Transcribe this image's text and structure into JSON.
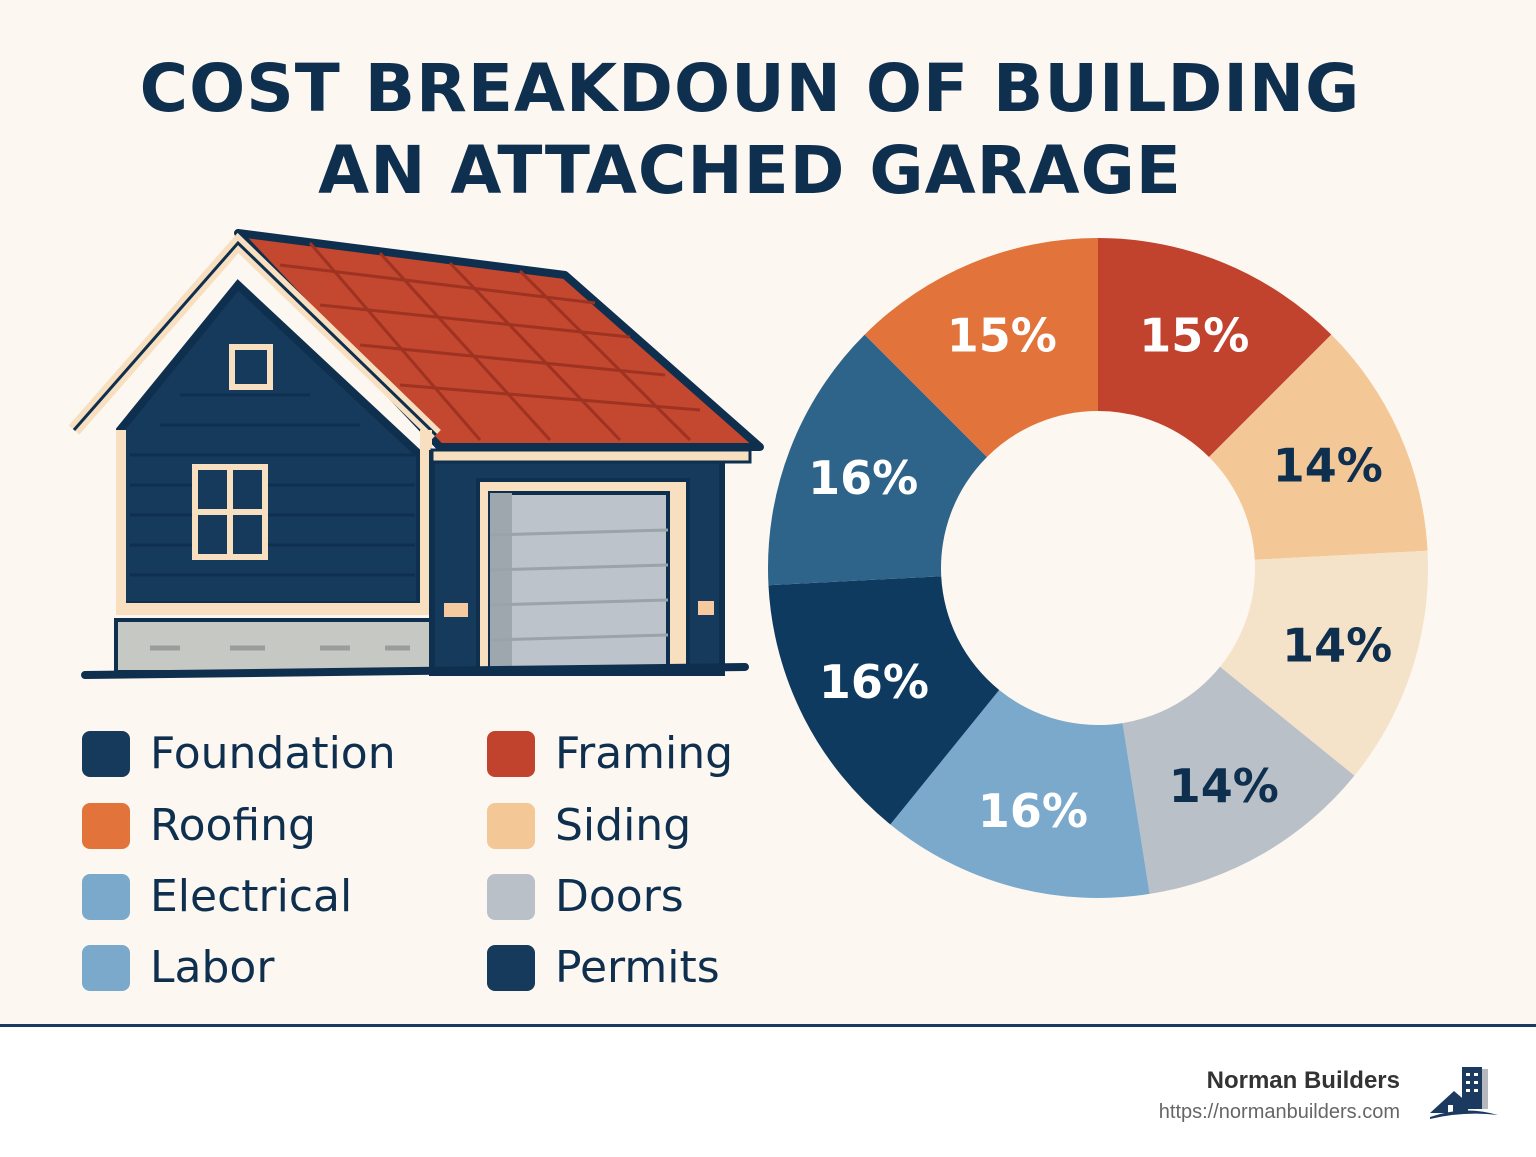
{
  "title_lines": [
    "COST BREAKDOUN OF BUILDING",
    "AN ATTACHED GARAGE"
  ],
  "chart_data": {
    "type": "pie",
    "donut": true,
    "title": "COST BREAKDOUN OF BUILDING AN ATTACHED GARAGE",
    "slices": [
      {
        "label": "15%",
        "value": 15,
        "color": "#c1432e",
        "text_color": "#ffffff"
      },
      {
        "label": "14%",
        "value": 14,
        "color": "#f4c896",
        "text_color": "#0f2f4f"
      },
      {
        "label": "14%",
        "value": 14,
        "color": "#f5e3c9",
        "text_color": "#0f2f4f"
      },
      {
        "label": "14%",
        "value": 14,
        "color": "#b9c0c8",
        "text_color": "#0f2f4f"
      },
      {
        "label": "16%",
        "value": 16,
        "color": "#7aa9cc",
        "text_color": "#ffffff"
      },
      {
        "label": "16%",
        "value": 16,
        "color": "#0e3a60",
        "text_color": "#ffffff"
      },
      {
        "label": "16%",
        "value": 16,
        "color": "#2e6489",
        "text_color": "#ffffff"
      },
      {
        "label": "15%",
        "value": 15,
        "color": "#e2733a",
        "text_color": "#ffffff"
      }
    ],
    "legend": [
      {
        "label": "Foundation",
        "color": "#163a5c"
      },
      {
        "label": "Framing",
        "color": "#c1432e"
      },
      {
        "label": "Roofing",
        "color": "#e2733a"
      },
      {
        "label": "Siding",
        "color": "#f4c896"
      },
      {
        "label": "Electrical",
        "color": "#7aa9cc"
      },
      {
        "label": "Doors",
        "color": "#b9c0c8"
      },
      {
        "label": "Labor",
        "color": "#7aa9cc"
      },
      {
        "label": "Permits",
        "color": "#163a5c"
      }
    ],
    "legend_placement": "bottom-left"
  },
  "footer": {
    "brand": "Norman Builders",
    "url": "https://normanbuilders.com"
  }
}
